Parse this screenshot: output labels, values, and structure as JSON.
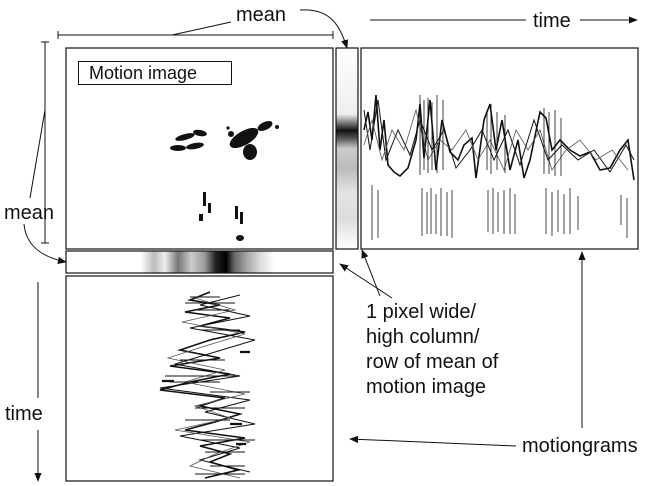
{
  "labels": {
    "mean_top": "mean",
    "time_top": "time",
    "mean_left": "mean",
    "time_left": "time",
    "motion_image_title": "Motion image",
    "note_lines": [
      "1 pixel wide/",
      "high column/",
      "row of mean of",
      "motion image"
    ],
    "motiongrams": "motiongrams"
  },
  "colors": {
    "ink": "#111111",
    "background": "#ffffff"
  }
}
